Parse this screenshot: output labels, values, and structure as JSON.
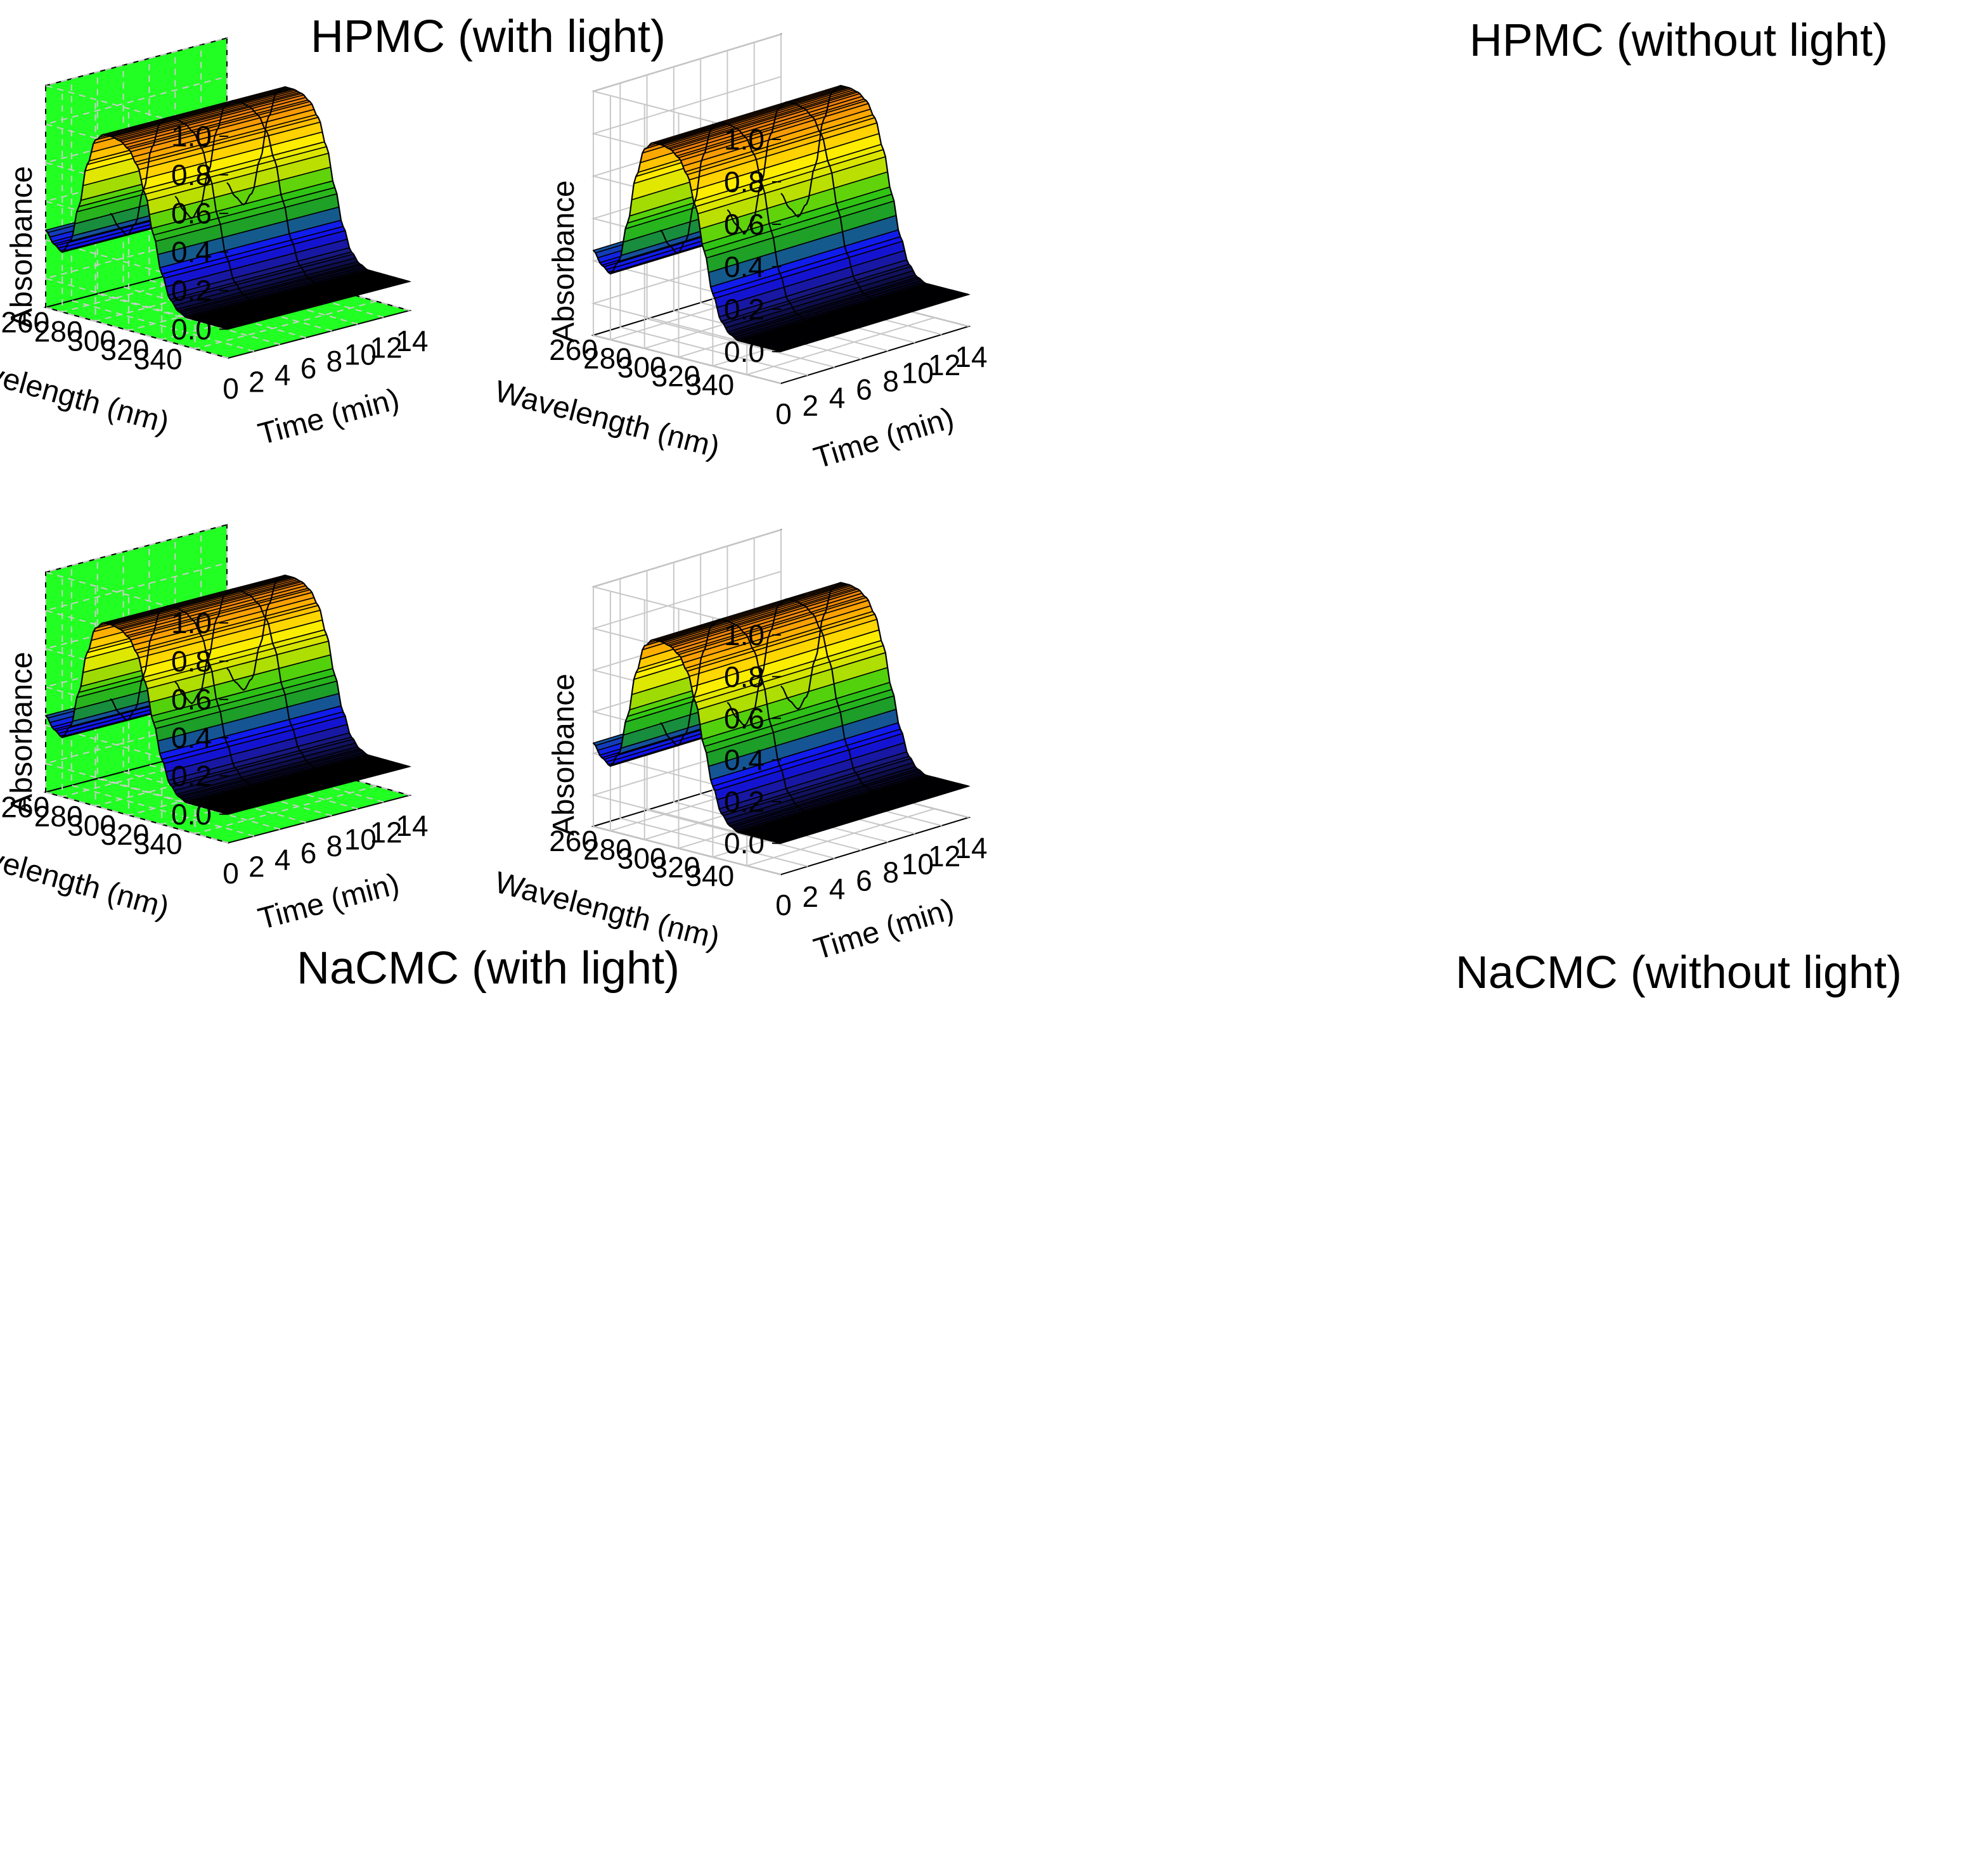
{
  "colors": {
    "green_wall": "#22ff22",
    "white_wall": "#ffffff",
    "grid": "#c8c8c8",
    "grid_green": "#cccccc",
    "axis": "#000000",
    "surface_stops": [
      "#000000",
      "#1a1a8c",
      "#1010ff",
      "#1a9a2a",
      "#33cc11",
      "#bfe000",
      "#ffee00",
      "#ffb000",
      "#e26a10"
    ]
  },
  "chart_data": [
    {
      "type": "surface3d",
      "title": "HPMC (with light)",
      "background": "green",
      "xlabel": "Time (min)",
      "ylabel": "Wavelength (nm)",
      "zlabel": "Absorbance",
      "x_ticks": [
        "0",
        "2",
        "4",
        "6",
        "8",
        "10",
        "12",
        "14"
      ],
      "y_ticks": [
        "260",
        "280",
        "300",
        "320",
        "340"
      ],
      "z_ticks": [
        "0.0",
        "0.2",
        "0.4",
        "0.6",
        "0.8",
        "1.0"
      ],
      "xlim": [
        0,
        14
      ],
      "ylim": [
        260,
        360
      ],
      "zlim": [
        -0.15,
        1.0
      ],
      "time_points": [
        0,
        5,
        10,
        14
      ],
      "wavelengths": [
        250,
        255,
        260,
        265,
        270,
        275,
        280,
        285,
        290,
        295,
        300,
        305,
        310,
        315,
        320,
        325,
        330,
        335,
        340,
        345,
        350,
        355,
        360
      ],
      "absorbance": [
        0.25,
        0.19,
        0.16,
        0.23,
        0.42,
        0.65,
        0.79,
        0.83,
        0.83,
        0.82,
        0.79,
        0.72,
        0.58,
        0.38,
        0.19,
        0.07,
        0.02,
        0.0,
        0.0,
        0.0,
        0.0,
        0.0,
        0.0
      ]
    },
    {
      "type": "surface3d",
      "title": "HPMC (without light)",
      "background": "white",
      "xlabel": "Time (min)",
      "ylabel": "Wavelength (nm)",
      "zlabel": "Absorbance",
      "x_ticks": [
        "0",
        "2",
        "4",
        "6",
        "8",
        "10",
        "12",
        "14"
      ],
      "y_ticks": [
        "260",
        "280",
        "300",
        "320",
        "340"
      ],
      "z_ticks": [
        "0.0",
        "0.2",
        "0.4",
        "0.6",
        "0.8",
        "1.0"
      ],
      "xlim": [
        0,
        14
      ],
      "ylim": [
        260,
        360
      ],
      "zlim": [
        -0.15,
        1.0
      ],
      "time_points": [
        0,
        5,
        10,
        14
      ],
      "wavelengths": [
        250,
        255,
        260,
        265,
        270,
        275,
        280,
        285,
        290,
        295,
        300,
        305,
        310,
        315,
        320,
        325,
        330,
        335,
        340,
        345,
        350,
        355,
        360
      ],
      "absorbance": [
        0.25,
        0.19,
        0.16,
        0.23,
        0.42,
        0.65,
        0.79,
        0.83,
        0.83,
        0.82,
        0.79,
        0.72,
        0.58,
        0.38,
        0.19,
        0.07,
        0.02,
        0.0,
        0.0,
        0.0,
        0.0,
        0.0,
        0.0
      ]
    },
    {
      "type": "surface3d",
      "title": "NaCMC (with light)",
      "background": "green",
      "xlabel": "Time (min)",
      "ylabel": "Wavelength (nm)",
      "zlabel": "Absorbance",
      "x_ticks": [
        "0",
        "2",
        "4",
        "6",
        "8",
        "10",
        "12",
        "14"
      ],
      "y_ticks": [
        "260",
        "280",
        "300",
        "320",
        "340"
      ],
      "z_ticks": [
        "0.0",
        "0.2",
        "0.4",
        "0.6",
        "0.8",
        "1.0"
      ],
      "xlim": [
        0,
        14
      ],
      "ylim": [
        260,
        360
      ],
      "zlim": [
        -0.15,
        1.0
      ],
      "time_points": [
        0,
        5,
        10,
        14
      ],
      "wavelengths": [
        250,
        255,
        260,
        265,
        270,
        275,
        280,
        285,
        290,
        295,
        300,
        305,
        310,
        315,
        320,
        325,
        330,
        335,
        340,
        345,
        350,
        355,
        360
      ],
      "absorbance": [
        0.25,
        0.19,
        0.16,
        0.23,
        0.42,
        0.64,
        0.78,
        0.82,
        0.82,
        0.81,
        0.78,
        0.71,
        0.57,
        0.37,
        0.19,
        0.07,
        0.02,
        0.0,
        0.0,
        0.0,
        0.0,
        0.0,
        0.0
      ]
    },
    {
      "type": "surface3d",
      "title": "NaCMC (without light)",
      "background": "white",
      "xlabel": "Time (min)",
      "ylabel": "Wavelength (nm)",
      "zlabel": "Absorbance",
      "x_ticks": [
        "0",
        "2",
        "4",
        "6",
        "8",
        "10",
        "12",
        "14"
      ],
      "y_ticks": [
        "260",
        "280",
        "300",
        "320",
        "340"
      ],
      "z_ticks": [
        "0.0",
        "0.2",
        "0.4",
        "0.6",
        "0.8",
        "1.0"
      ],
      "xlim": [
        0,
        14
      ],
      "ylim": [
        260,
        360
      ],
      "zlim": [
        -0.15,
        1.0
      ],
      "time_points": [
        0,
        5,
        10,
        14
      ],
      "wavelengths": [
        250,
        255,
        260,
        265,
        270,
        275,
        280,
        285,
        290,
        295,
        300,
        305,
        310,
        315,
        320,
        325,
        330,
        335,
        340,
        345,
        350,
        355,
        360
      ],
      "absorbance": [
        0.25,
        0.19,
        0.16,
        0.23,
        0.42,
        0.64,
        0.78,
        0.82,
        0.82,
        0.81,
        0.78,
        0.71,
        0.57,
        0.37,
        0.19,
        0.07,
        0.02,
        0.0,
        0.0,
        0.0,
        0.0,
        0.0,
        0.0
      ]
    }
  ]
}
